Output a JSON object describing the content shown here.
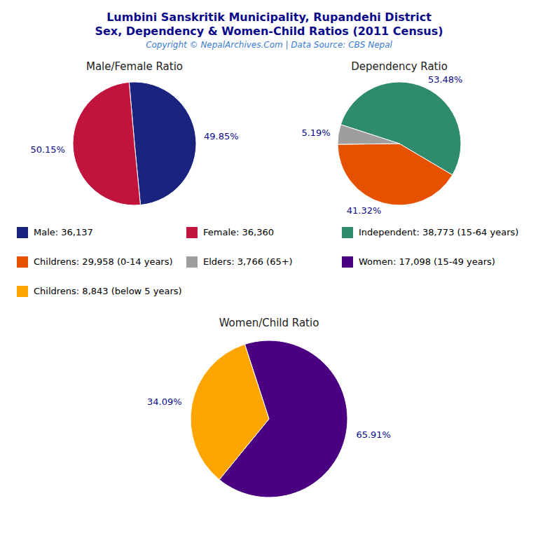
{
  "title": "Lumbini Sanskritik Municipality, Rupandehi District",
  "subtitle": "Sex, Dependency & Women-Child Ratios (2011 Census)",
  "annotations": [
    "Copyright © NepalArchives.Com | Data Source: CBS Nepal"
  ],
  "chart_data": [
    {
      "type": "pie",
      "title": "Male/Female Ratio",
      "categories": [
        "Male: 36,137",
        "Female: 36,360"
      ],
      "values": [
        49.85,
        50.15
      ],
      "value_labels": [
        "49.85%",
        "50.15%"
      ],
      "colors": [
        "#1a237e",
        "#c0143c"
      ],
      "data_labels": true,
      "legend": "bottom"
    },
    {
      "type": "pie",
      "title": "Dependency Ratio",
      "categories": [
        "Independent: 38,773 (15-64 years)",
        "Childrens: 29,958 (0-14 years)",
        "Elders: 3,766 (65+)"
      ],
      "values": [
        53.48,
        41.32,
        5.19
      ],
      "value_labels": [
        "53.48%",
        "41.32%",
        "5.19%"
      ],
      "colors": [
        "#2e8b6e",
        "#e65100",
        "#9e9e9e"
      ],
      "data_labels": true,
      "legend": "bottom"
    },
    {
      "type": "pie",
      "title": "Women/Child Ratio",
      "categories": [
        "Women: 17,098 (15-49 years)",
        "Childrens: 8,843 (below 5 years)"
      ],
      "values": [
        65.91,
        34.09
      ],
      "value_labels": [
        "65.91%",
        "34.09%"
      ],
      "colors": [
        "#4a0080",
        "#ffa500"
      ],
      "data_labels": true,
      "legend": "top"
    }
  ]
}
